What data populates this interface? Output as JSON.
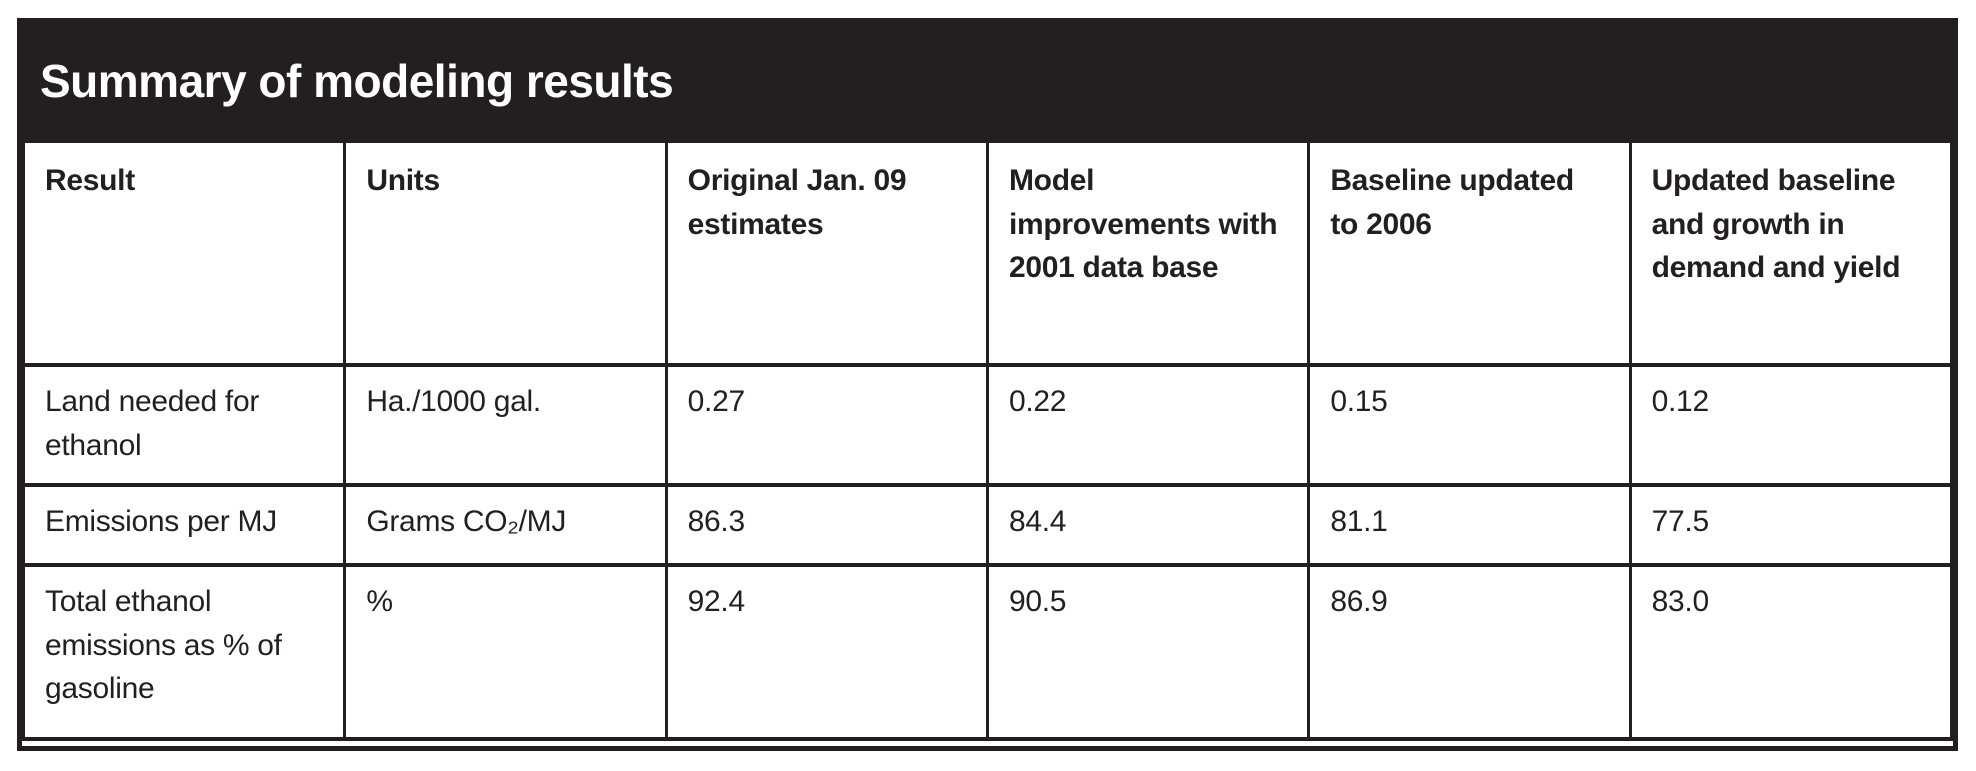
{
  "title": "Summary of modeling results",
  "table": {
    "columns": [
      "Result",
      "Units",
      "Original Jan. 09 estimates",
      "Model improvements with 2001 data base",
      "Baseline updated to 2006",
      "Updated baseline and growth in demand and yield"
    ],
    "rows": [
      [
        "Land needed for ethanol",
        "Ha./1000 gal.",
        "0.27",
        "0.22",
        "0.15",
        "0.12"
      ],
      [
        "Emissions per MJ",
        "Grams CO₂/MJ",
        "86.3",
        "84.4",
        "81.1",
        "77.5"
      ],
      [
        "Total ethanol emissions as % of gasoline",
        "%",
        "92.4",
        "90.5",
        "86.9",
        "83.0"
      ]
    ]
  },
  "colors": {
    "title_bar_bg": "#231f20",
    "title_text": "#ffffff",
    "border": "#231f20",
    "body_text": "#231f20",
    "cell_bg": "#ffffff"
  },
  "chart_data": {
    "type": "table",
    "title": "Summary of modeling results",
    "columns": [
      "Result",
      "Units",
      "Original Jan. 09 estimates",
      "Model improvements with 2001 data base",
      "Baseline updated to 2006",
      "Updated baseline and growth in demand and yield"
    ],
    "rows": [
      {
        "result": "Land needed for ethanol",
        "units": "Ha./1000 gal.",
        "original_jan_09_estimates": 0.27,
        "model_improvements_2001_data_base": 0.22,
        "baseline_updated_to_2006": 0.15,
        "updated_baseline_growth_demand_yield": 0.12
      },
      {
        "result": "Emissions per MJ",
        "units": "Grams CO₂/MJ",
        "original_jan_09_estimates": 86.3,
        "model_improvements_2001_data_base": 84.4,
        "baseline_updated_to_2006": 81.1,
        "updated_baseline_growth_demand_yield": 77.5
      },
      {
        "result": "Total ethanol emissions as % of gasoline",
        "units": "%",
        "original_jan_09_estimates": 92.4,
        "model_improvements_2001_data_base": 90.5,
        "baseline_updated_to_2006": 86.9,
        "updated_baseline_growth_demand_yield": 83.0
      }
    ]
  }
}
